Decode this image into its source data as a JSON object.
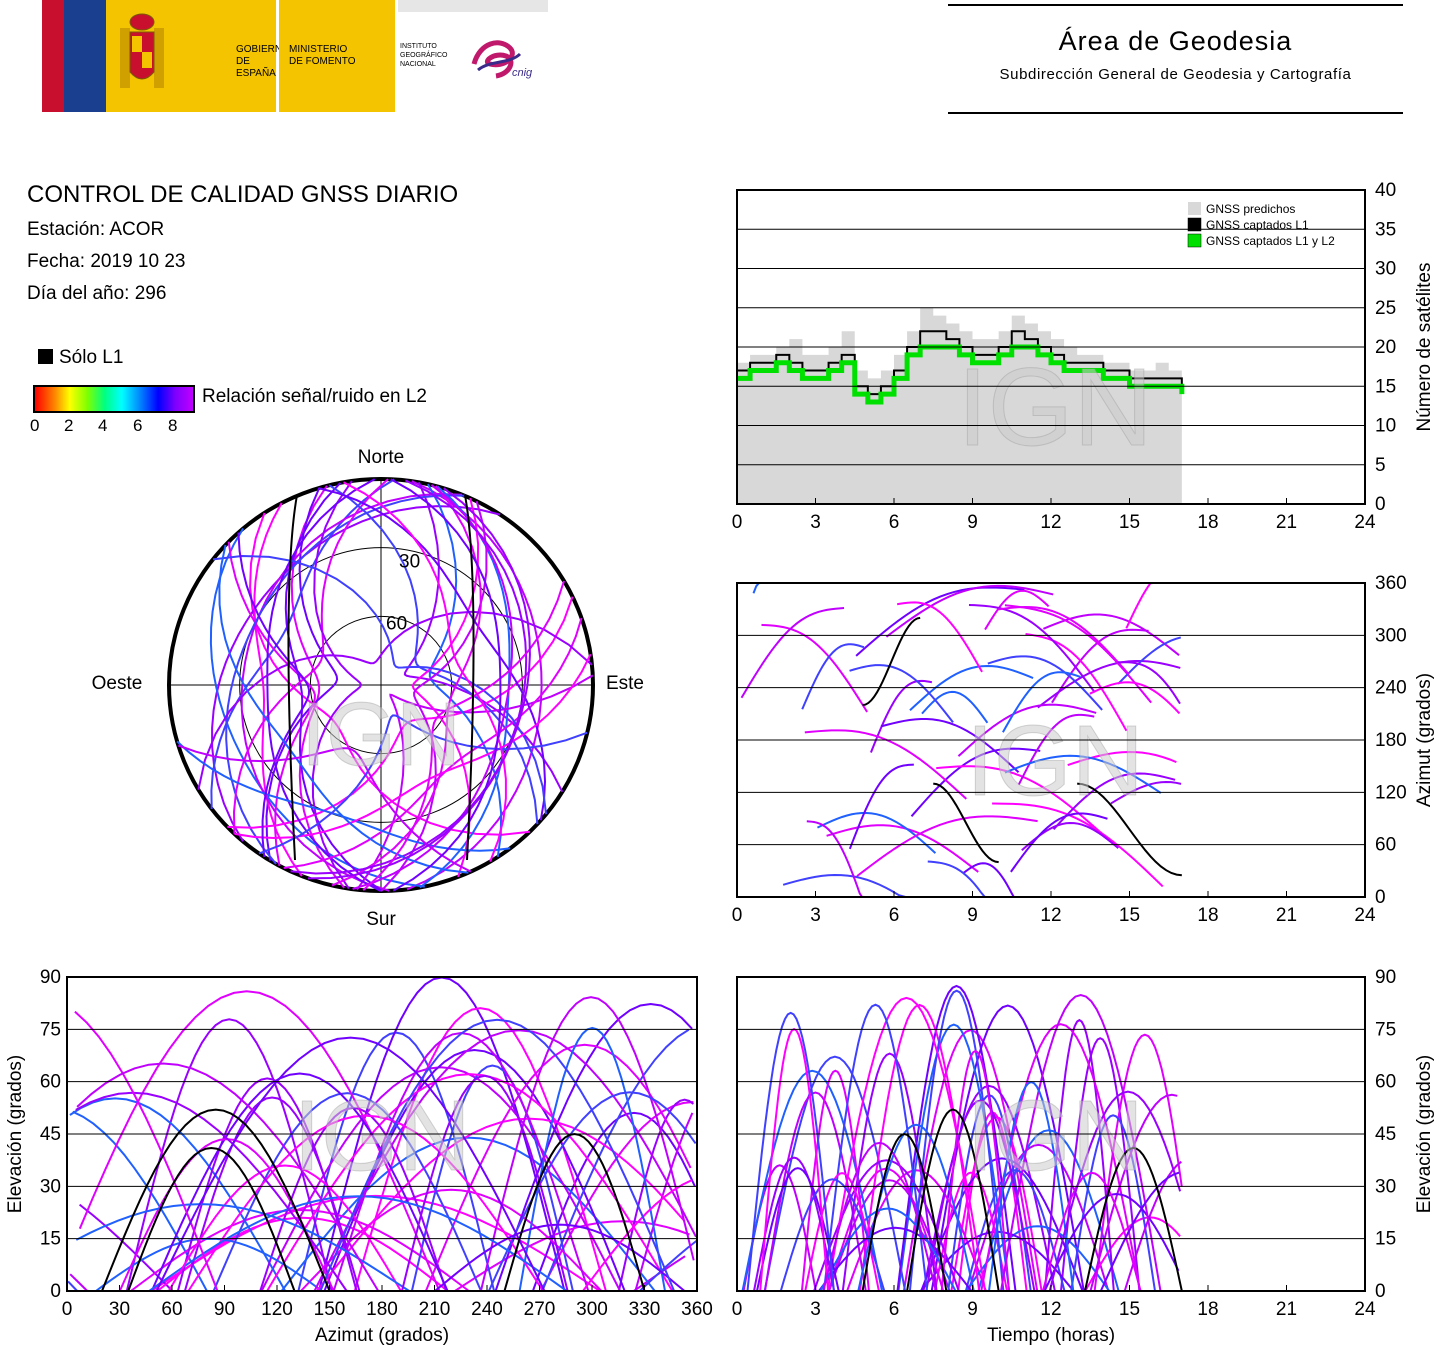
{
  "header": {
    "gobierno": "GOBIERNO\nDE ESPAÑA",
    "ministerio": "MINISTERIO\nDE FOMENTO",
    "instituto": "INSTITUTO\nGEOGRÁFICO\nNACIONAL",
    "cnig": "cnig",
    "area_title": "Área de Geodesia",
    "area_subtitle": "Subdirección General de Geodesia y Cartografía",
    "colors": {
      "flag_red": "#c8102e",
      "flag_blue": "#1a3f8f",
      "yellow": "#f5c400"
    }
  },
  "info": {
    "title": "CONTROL DE CALIDAD GNSS DIARIO",
    "station": "Estación: ACOR",
    "date": "Fecha: 2019 10 23",
    "doy": "Día del año: 296",
    "solo_l1": "Sólo L1",
    "colorbar_label": "Relación señal/ruido en L2",
    "colorbar_ticks": [
      "0",
      "2",
      "4",
      "6",
      "8"
    ]
  },
  "watermark": "IGN",
  "chart_data": [
    {
      "id": "satellite-count",
      "type": "line",
      "xlabel": "",
      "ylabel": "Número de satélites",
      "xlim": [
        0,
        24
      ],
      "ylim": [
        0,
        40
      ],
      "xticks": [
        0,
        3,
        6,
        9,
        12,
        15,
        18,
        21,
        24
      ],
      "yticks": [
        0,
        5,
        10,
        15,
        20,
        25,
        30,
        35,
        40
      ],
      "legend_position": "top-right",
      "x": [
        0,
        0.5,
        1,
        1.5,
        2,
        2.5,
        3,
        3.5,
        4,
        4.5,
        5,
        5.5,
        6,
        6.5,
        7,
        7.5,
        8,
        8.5,
        9,
        9.5,
        10,
        10.5,
        11,
        11.5,
        12,
        12.5,
        13,
        13.5,
        14,
        14.5,
        15,
        15.5,
        16,
        16.5,
        17
      ],
      "series": [
        {
          "name": "GNSS predichos",
          "color": "#d8d8d8",
          "values": [
            18,
            19,
            19,
            20,
            21,
            19,
            19,
            20,
            22,
            17,
            16,
            17,
            19,
            22,
            25,
            24,
            23,
            22,
            21,
            21,
            22,
            24,
            23,
            22,
            21,
            20,
            19,
            19,
            18,
            18,
            17,
            17,
            18,
            17,
            17
          ]
        },
        {
          "name": "GNSS captados L1",
          "color": "#000000",
          "values": [
            17,
            18,
            18,
            19,
            18,
            17,
            17,
            18,
            19,
            15,
            14,
            15,
            17,
            20,
            22,
            22,
            21,
            20,
            19,
            19,
            20,
            22,
            21,
            20,
            19,
            18,
            18,
            18,
            17,
            17,
            16,
            16,
            16,
            16,
            15
          ]
        },
        {
          "name": "GNSS captados L1 y L2",
          "color": "#00e000",
          "values": [
            16,
            17,
            17,
            18,
            17,
            16,
            16,
            17,
            18,
            14,
            13,
            14,
            16,
            19,
            20,
            20,
            20,
            19,
            18,
            18,
            19,
            20,
            20,
            19,
            18,
            17,
            17,
            17,
            16,
            16,
            15,
            15,
            15,
            15,
            14
          ]
        }
      ]
    },
    {
      "id": "azimuth-time",
      "type": "scatter",
      "xlabel": "",
      "ylabel": "Azimut (grados)",
      "xlim": [
        0,
        24
      ],
      "ylim": [
        0,
        360
      ],
      "xticks": [
        0,
        3,
        6,
        9,
        12,
        15,
        18,
        21,
        24
      ],
      "yticks": [
        0,
        60,
        120,
        180,
        240,
        300,
        360
      ]
    },
    {
      "id": "skyplot",
      "type": "scatter",
      "compass": [
        "Norte",
        "Este",
        "Sur",
        "Oeste"
      ],
      "elevation_rings": [
        "30",
        "60"
      ]
    },
    {
      "id": "elevation-azimuth",
      "type": "scatter",
      "xlabel": "Azimut (grados)",
      "ylabel": "Elevación (grados)",
      "xlim": [
        0,
        360
      ],
      "ylim": [
        0,
        90
      ],
      "xticks": [
        0,
        30,
        60,
        90,
        120,
        150,
        180,
        210,
        240,
        270,
        300,
        330,
        360
      ],
      "yticks": [
        0,
        15,
        30,
        45,
        60,
        75,
        90
      ]
    },
    {
      "id": "elevation-time",
      "type": "scatter",
      "xlabel": "Tiempo (horas)",
      "ylabel": "Elevación (grados)",
      "xlim": [
        0,
        24
      ],
      "ylim": [
        0,
        90
      ],
      "xticks": [
        0,
        3,
        6,
        9,
        12,
        15,
        18,
        21,
        24
      ],
      "yticks": [
        0,
        15,
        30,
        45,
        60,
        75,
        90
      ]
    }
  ]
}
